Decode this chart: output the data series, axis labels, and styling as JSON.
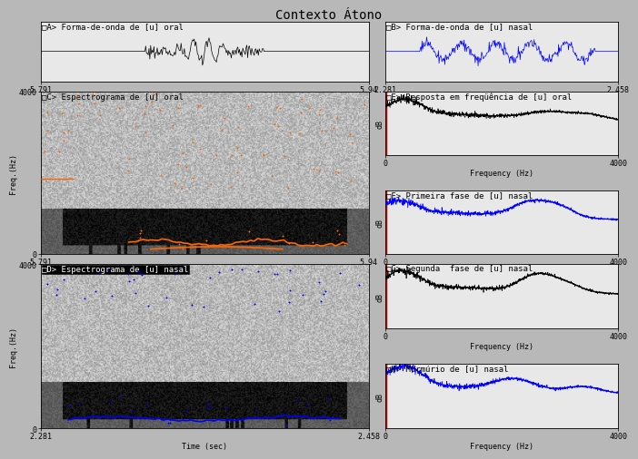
{
  "title": "Contexto Átono",
  "title_fontsize": 10,
  "bg_color": "#b8b8b8",
  "panel_bg": "#e8e8e8",
  "label_fs": 6.5,
  "tick_fs": 6,
  "axis_label_fs": 6,
  "waveform_A": {
    "xmin": 5.791,
    "xmax": 5.94,
    "color": "black",
    "label": "A>",
    "title": "Forma-de-onda de [u] oral"
  },
  "waveform_B": {
    "xmin": 2.281,
    "xmax": 2.458,
    "color": "blue",
    "label": "B>",
    "title": "Forma-de-onda de [u] nasal"
  },
  "spect_C": {
    "xmin": 5.791,
    "xmax": 5.94,
    "label": "C>",
    "title": "Espectrograma de [u] oral",
    "dot_color": "#FF6600"
  },
  "spect_D": {
    "xmin": 2.281,
    "xmax": 2.458,
    "label": "D>",
    "title": "Espectrograma de [u] nasal",
    "dot_color": "blue"
  },
  "freq_E": {
    "label": "E>",
    "title": "Resposta em freqüência de [u] oral",
    "color": "black"
  },
  "freq_F": {
    "label": "F>",
    "title": "Primeira fase de [u] nasal",
    "color": "blue"
  },
  "freq_G": {
    "label": "G>",
    "title": "Segunda  fase de [u] nasal",
    "color": "black"
  },
  "freq_H": {
    "label": "H>",
    "title": "Murmúrio de [u] nasal",
    "color": "blue"
  }
}
